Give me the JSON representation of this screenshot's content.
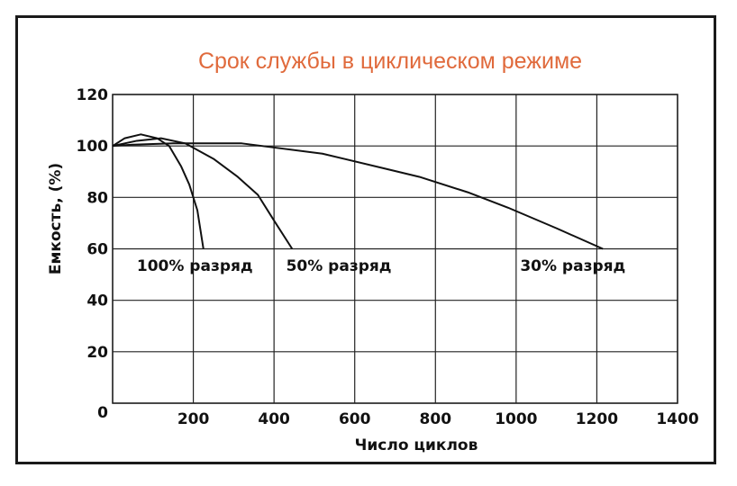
{
  "chart_data": {
    "type": "line",
    "title": "Срок службы в циклическом режиме",
    "title_color": "#e06a3c",
    "xlabel": "Число циклов",
    "ylabel": "Емкость, (%)",
    "xlim": [
      0,
      1400
    ],
    "ylim": [
      0,
      120
    ],
    "xticks": [
      0,
      200,
      400,
      600,
      800,
      1000,
      1200,
      1400
    ],
    "yticks": [
      0,
      20,
      40,
      60,
      80,
      100,
      120
    ],
    "grid": true,
    "line_color": "#111111",
    "series": [
      {
        "name": "100% разряд",
        "x": [
          0,
          30,
          70,
          110,
          140,
          170,
          190,
          210,
          225
        ],
        "y": [
          100,
          103,
          104.5,
          103,
          100,
          92,
          85,
          75,
          60
        ]
      },
      {
        "name": "50% разряд",
        "x": [
          0,
          60,
          120,
          180,
          250,
          310,
          360,
          400,
          445
        ],
        "y": [
          100,
          102,
          103,
          101,
          95,
          88,
          81,
          71,
          60
        ]
      },
      {
        "name": "30% разряд",
        "x": [
          0,
          50,
          150,
          320,
          520,
          680,
          760,
          880,
          980,
          1100,
          1215
        ],
        "y": [
          100,
          100.5,
          101,
          101,
          97,
          91,
          88,
          82,
          76,
          68,
          60
        ]
      }
    ],
    "annotations": [
      {
        "text": "100% разряд",
        "x": 60,
        "y": 55
      },
      {
        "text": "50% разряд",
        "x": 430,
        "y": 55
      },
      {
        "text": "30% разряд",
        "x": 1010,
        "y": 55
      }
    ]
  }
}
